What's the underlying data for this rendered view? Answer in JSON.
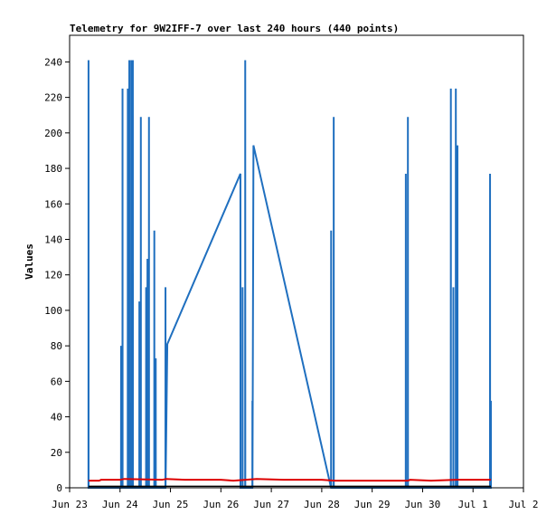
{
  "chart_data": {
    "type": "line",
    "title": "Telemetry for 9W2IFF-7 over last 240 hours (440 points)",
    "ylabel": "Values",
    "xlabel": "",
    "xlim": [
      "2023-06-23",
      "2023-07-02"
    ],
    "ylim": [
      0,
      255
    ],
    "yticks": [
      0,
      20,
      40,
      60,
      80,
      100,
      120,
      140,
      160,
      180,
      200,
      220,
      240
    ],
    "xticks": [
      {
        "date": "2023-06-23",
        "label": "Jun 23"
      },
      {
        "date": "2023-06-24",
        "label": "Jun 24"
      },
      {
        "date": "2023-06-25",
        "label": "Jun 25"
      },
      {
        "date": "2023-06-26",
        "label": "Jun 26"
      },
      {
        "date": "2023-06-27",
        "label": "Jun 27"
      },
      {
        "date": "2023-06-28",
        "label": "Jun 28"
      },
      {
        "date": "2023-06-29",
        "label": "Jun 29"
      },
      {
        "date": "2023-06-30",
        "label": "Jun 30"
      },
      {
        "date": "2023-07-01",
        "label": "Jul 1"
      },
      {
        "date": "2023-07-02",
        "label": "Jul 2"
      }
    ],
    "grid": false,
    "legend": "none",
    "series": [
      {
        "color": "#1f6fbf",
        "points": [
          [
            "2023-06-23 08:58",
            0
          ],
          [
            "2023-06-23 09:00",
            241
          ],
          [
            "2023-06-23 09:02",
            0
          ],
          [
            "2023-06-24 00:28",
            0
          ],
          [
            "2023-06-24 00:30",
            80
          ],
          [
            "2023-06-24 00:32",
            0
          ],
          [
            "2023-06-24 01:09",
            0
          ],
          [
            "2023-06-24 01:11",
            225
          ],
          [
            "2023-06-24 01:13",
            0
          ],
          [
            "2023-06-24 03:40",
            0
          ],
          [
            "2023-06-24 03:42",
            225
          ],
          [
            "2023-06-24 03:44",
            0
          ],
          [
            "2023-06-24 04:23",
            0
          ],
          [
            "2023-06-24 04:25",
            241
          ],
          [
            "2023-06-24 04:27",
            0
          ],
          [
            "2023-06-24 05:18",
            0
          ],
          [
            "2023-06-24 05:20",
            241
          ],
          [
            "2023-06-24 05:22",
            0
          ],
          [
            "2023-06-24 06:04",
            0
          ],
          [
            "2023-06-24 06:06",
            241
          ],
          [
            "2023-06-24 06:08",
            0
          ],
          [
            "2023-06-24 09:10",
            0
          ],
          [
            "2023-06-24 09:12",
            105
          ],
          [
            "2023-06-24 09:14",
            0
          ],
          [
            "2023-06-24 09:52",
            0
          ],
          [
            "2023-06-24 09:54",
            209
          ],
          [
            "2023-06-24 09:56",
            0
          ],
          [
            "2023-06-24 12:23",
            0
          ],
          [
            "2023-06-24 12:25",
            113
          ],
          [
            "2023-06-24 12:27",
            0
          ],
          [
            "2023-06-24 13:01",
            0
          ],
          [
            "2023-06-24 13:03",
            129
          ],
          [
            "2023-06-24 13:05",
            0
          ],
          [
            "2023-06-24 13:44",
            0
          ],
          [
            "2023-06-24 13:46",
            209
          ],
          [
            "2023-06-24 13:48",
            0
          ],
          [
            "2023-06-24 16:17",
            0
          ],
          [
            "2023-06-24 16:19",
            145
          ],
          [
            "2023-06-24 16:21",
            0
          ],
          [
            "2023-06-24 16:57",
            0
          ],
          [
            "2023-06-24 16:59",
            73
          ],
          [
            "2023-06-24 17:01",
            0
          ],
          [
            "2023-06-24 21:36",
            0
          ],
          [
            "2023-06-24 21:38",
            113
          ],
          [
            "2023-06-24 21:40",
            0
          ],
          [
            "2023-06-24 22:30",
            81
          ],
          [
            "2023-06-26 09:18",
            177
          ],
          [
            "2023-06-26 09:20",
            0
          ],
          [
            "2023-06-26 10:17",
            0
          ],
          [
            "2023-06-26 10:19",
            113
          ],
          [
            "2023-06-26 10:21",
            0
          ],
          [
            "2023-06-26 11:33",
            0
          ],
          [
            "2023-06-26 11:35",
            241
          ],
          [
            "2023-06-26 11:37",
            0
          ],
          [
            "2023-06-26 14:58",
            0
          ],
          [
            "2023-06-26 15:00",
            49
          ],
          [
            "2023-06-26 15:02",
            0
          ],
          [
            "2023-06-26 15:30",
            193
          ],
          [
            "2023-06-28 04:26",
            0
          ],
          [
            "2023-06-28 04:28",
            145
          ],
          [
            "2023-06-28 04:30",
            0
          ],
          [
            "2023-06-28 05:40",
            0
          ],
          [
            "2023-06-28 05:42",
            209
          ],
          [
            "2023-06-28 05:44",
            0
          ],
          [
            "2023-06-29 15:59",
            0
          ],
          [
            "2023-06-29 16:01",
            177
          ],
          [
            "2023-06-29 16:03",
            0
          ],
          [
            "2023-06-29 16:58",
            0
          ],
          [
            "2023-06-29 17:00",
            209
          ],
          [
            "2023-06-29 17:02",
            0
          ],
          [
            "2023-06-30 13:25",
            0
          ],
          [
            "2023-06-30 13:27",
            225
          ],
          [
            "2023-06-30 13:29",
            0
          ],
          [
            "2023-06-30 14:37",
            0
          ],
          [
            "2023-06-30 14:39",
            113
          ],
          [
            "2023-06-30 14:41",
            0
          ],
          [
            "2023-06-30 15:47",
            0
          ],
          [
            "2023-06-30 15:49",
            225
          ],
          [
            "2023-06-30 15:51",
            0
          ],
          [
            "2023-06-30 16:34",
            0
          ],
          [
            "2023-06-30 16:36",
            193
          ],
          [
            "2023-06-30 16:38",
            0
          ],
          [
            "2023-07-01 08:04",
            0
          ],
          [
            "2023-07-01 08:06",
            177
          ],
          [
            "2023-07-01 08:08",
            0
          ],
          [
            "2023-07-01 08:28",
            0
          ],
          [
            "2023-07-01 08:30",
            49
          ],
          [
            "2023-07-01 08:32",
            0
          ]
        ]
      },
      {
        "color": "#dd0000",
        "points": [
          [
            "2023-06-23 09:00",
            4
          ],
          [
            "2023-06-23 14:00",
            4
          ],
          [
            "2023-06-23 15:00",
            4.5
          ],
          [
            "2023-06-24 00:00",
            4.5
          ],
          [
            "2023-06-24 02:00",
            5
          ],
          [
            "2023-06-24 20:00",
            4.5
          ],
          [
            "2023-06-24 22:00",
            5
          ],
          [
            "2023-06-25 07:00",
            4.5
          ],
          [
            "2023-06-26 00:00",
            4.5
          ],
          [
            "2023-06-26 06:00",
            4
          ],
          [
            "2023-06-26 17:00",
            5
          ],
          [
            "2023-06-27 06:00",
            4.5
          ],
          [
            "2023-06-28 00:00",
            4.5
          ],
          [
            "2023-06-28 06:00",
            4
          ],
          [
            "2023-06-29 17:00",
            4
          ],
          [
            "2023-06-29 18:00",
            4.5
          ],
          [
            "2023-06-30 04:00",
            4
          ],
          [
            "2023-06-30 16:00",
            4.5
          ],
          [
            "2023-07-01 08:30",
            4.5
          ]
        ]
      },
      {
        "color": "#000000",
        "points": [
          [
            "2023-06-23 09:00",
            0.8
          ],
          [
            "2023-07-01 08:30",
            0.8
          ]
        ]
      }
    ]
  }
}
